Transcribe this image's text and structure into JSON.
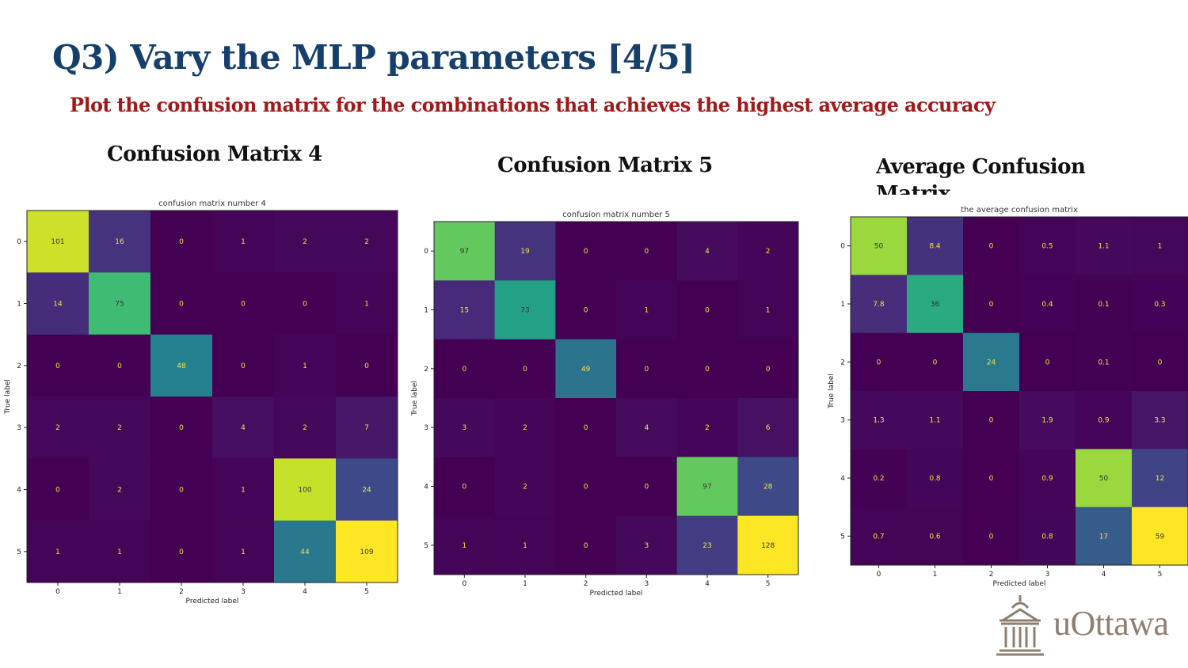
{
  "slide": {
    "title": "Q3) Vary the MLP parameters [4/5]",
    "subtitle": "Plot the confusion matrix for the combinations that achieves the highest average accuracy",
    "headings": [
      "Confusion Matrix 4",
      "Confusion Matrix 5",
      "Average Confusion Matrix"
    ],
    "logo_text": "uOttawa",
    "logo_icon": "university-building-icon",
    "colors": {
      "title": "#163f6b",
      "subtitle": "#a11a1a",
      "logo": "#8f7f70"
    }
  },
  "chart_data": [
    {
      "type": "heatmap",
      "title": "confusion matrix number 4",
      "xlabel": "Predicted label",
      "ylabel": "True label",
      "x": [
        "0",
        "1",
        "2",
        "3",
        "4",
        "5"
      ],
      "y": [
        "0",
        "1",
        "2",
        "3",
        "4",
        "5"
      ],
      "values": [
        [
          101,
          16,
          0,
          1,
          2,
          2
        ],
        [
          14,
          75,
          0,
          0,
          0,
          1
        ],
        [
          0,
          0,
          48,
          0,
          1,
          0
        ],
        [
          2,
          2,
          0,
          4,
          2,
          7
        ],
        [
          0,
          2,
          0,
          1,
          100,
          24
        ],
        [
          1,
          1,
          0,
          1,
          44,
          109
        ]
      ],
      "colormap": "viridis"
    },
    {
      "type": "heatmap",
      "title": "confusion matrix number 5",
      "xlabel": "Predicted label",
      "ylabel": "True label",
      "x": [
        "0",
        "1",
        "2",
        "3",
        "4",
        "5"
      ],
      "y": [
        "0",
        "1",
        "2",
        "3",
        "4",
        "5"
      ],
      "values": [
        [
          97,
          19,
          0,
          0,
          4,
          2
        ],
        [
          15,
          73,
          0,
          1,
          0,
          1
        ],
        [
          0,
          0,
          49,
          0,
          0,
          0
        ],
        [
          3,
          2,
          0,
          4,
          2,
          6
        ],
        [
          0,
          2,
          0,
          0,
          97,
          28
        ],
        [
          1,
          1,
          0,
          3,
          23,
          128
        ]
      ],
      "colormap": "viridis"
    },
    {
      "type": "heatmap",
      "title": "the average confusion matrix",
      "xlabel": "Predicted label",
      "ylabel": "True label",
      "x": [
        "0",
        "1",
        "2",
        "3",
        "4",
        "5"
      ],
      "y": [
        "0",
        "1",
        "2",
        "3",
        "4",
        "5"
      ],
      "values": [
        [
          50,
          8.4,
          0,
          0.5,
          1.1,
          1
        ],
        [
          7.8,
          36,
          0,
          0.4,
          0.1,
          0.3
        ],
        [
          0,
          0,
          24,
          0,
          0.1,
          0
        ],
        [
          1.3,
          1.1,
          0,
          1.9,
          0.9,
          3.3
        ],
        [
          0.2,
          0.8,
          0,
          0.9,
          50,
          12
        ],
        [
          0.7,
          0.6,
          0,
          0.8,
          17,
          59
        ]
      ],
      "colormap": "viridis"
    }
  ]
}
